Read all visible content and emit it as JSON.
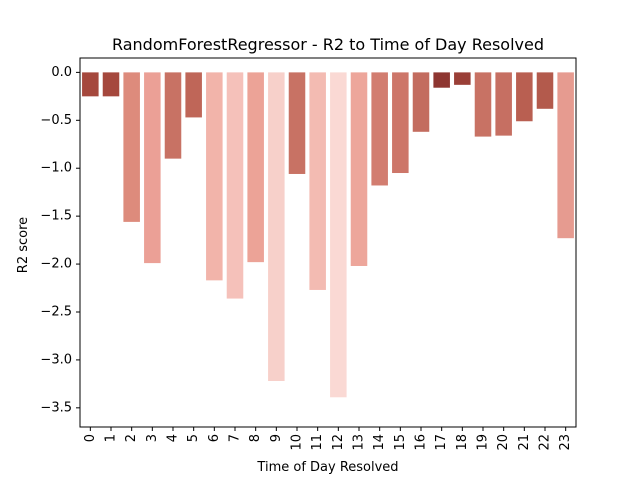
{
  "chart_data": {
    "type": "bar",
    "title": "RandomForestRegressor - R2 to Time of Day Resolved",
    "xlabel": "Time of Day Resolved",
    "ylabel": "R2 score",
    "categories": [
      "0",
      "1",
      "2",
      "3",
      "4",
      "5",
      "6",
      "7",
      "8",
      "9",
      "10",
      "11",
      "12",
      "13",
      "14",
      "15",
      "16",
      "17",
      "18",
      "19",
      "20",
      "21",
      "22",
      "23"
    ],
    "values": [
      -0.25,
      -0.25,
      -1.56,
      -1.99,
      -0.9,
      -0.47,
      -2.17,
      -2.36,
      -1.98,
      -3.22,
      -1.06,
      -2.27,
      -3.39,
      -2.02,
      -1.18,
      -1.05,
      -0.62,
      -0.16,
      -0.13,
      -0.67,
      -0.66,
      -0.51,
      -0.38,
      -1.73
    ],
    "colors": [
      "#a5483d",
      "#a5483d",
      "#dd8b7c",
      "#eba096",
      "#c87264",
      "#bf6658",
      "#f2b4aa",
      "#f5c1ba",
      "#eca397",
      "#f7d0ca",
      "#c87264",
      "#f3bbb2",
      "#fad9d4",
      "#eda69b",
      "#d27d70",
      "#cd7669",
      "#c36c5f",
      "#8e3631",
      "#9a3f37",
      "#c87264",
      "#c66f62",
      "#b95f51",
      "#b35a4c",
      "#e69b90"
    ],
    "yticks": [
      0.0,
      -0.5,
      -1.0,
      -1.5,
      -2.0,
      -2.5,
      -3.0,
      -3.5
    ],
    "ytick_labels": [
      "0.0",
      "−0.5",
      "−1.0",
      "−1.5",
      "−2.0",
      "−2.5",
      "−3.0",
      "−3.5"
    ],
    "ylim": [
      -3.7,
      0.15
    ],
    "grid": false,
    "legend": "none"
  }
}
